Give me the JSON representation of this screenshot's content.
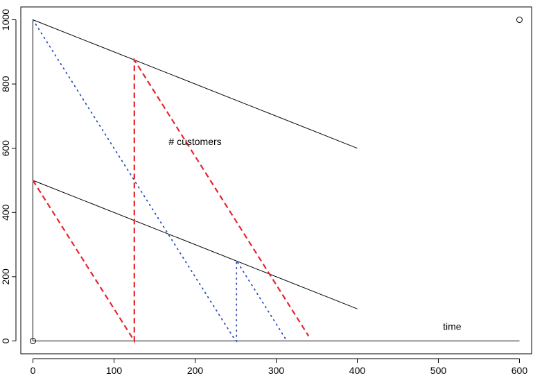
{
  "chart_data": {
    "type": "line",
    "title": "",
    "xlabel": "",
    "ylabel": "",
    "xlim": [
      -15,
      615
    ],
    "ylim": [
      -40,
      1040
    ],
    "x_ticks": [
      0,
      100,
      200,
      300,
      400,
      500,
      600
    ],
    "y_ticks": [
      0,
      200,
      400,
      600,
      800,
      1000
    ],
    "grid": false,
    "legend": "none",
    "series": [
      {
        "style": "solid",
        "color": "#000000",
        "points": [
          [
            0,
            0
          ],
          [
            0,
            1000
          ]
        ]
      },
      {
        "style": "solid",
        "color": "#000000",
        "points": [
          [
            0,
            0
          ],
          [
            600,
            0
          ]
        ]
      },
      {
        "style": "solid",
        "color": "#000000",
        "points": [
          [
            0,
            1000
          ],
          [
            400,
            600
          ]
        ]
      },
      {
        "style": "solid",
        "color": "#000000",
        "points": [
          [
            0,
            500
          ],
          [
            400,
            100
          ]
        ]
      },
      {
        "style": "dashed",
        "color": "#e8242b",
        "points": [
          [
            0,
            500
          ],
          [
            125,
            0
          ],
          [
            125,
            875
          ],
          [
            340,
            15
          ]
        ]
      },
      {
        "style": "dotted",
        "color": "#2b4fc0",
        "points": [
          [
            0,
            1000
          ],
          [
            248,
            8
          ],
          [
            251,
            0
          ],
          [
            251,
            250
          ],
          [
            312,
            5
          ]
        ]
      },
      {
        "style": "points",
        "color": "#000000",
        "points": [
          [
            0,
            0
          ],
          [
            600,
            1000
          ]
        ]
      }
    ],
    "annotations": [
      {
        "text": "# customers",
        "x": 200,
        "y": 610
      },
      {
        "text": "time",
        "x": 517,
        "y": 35
      }
    ]
  }
}
